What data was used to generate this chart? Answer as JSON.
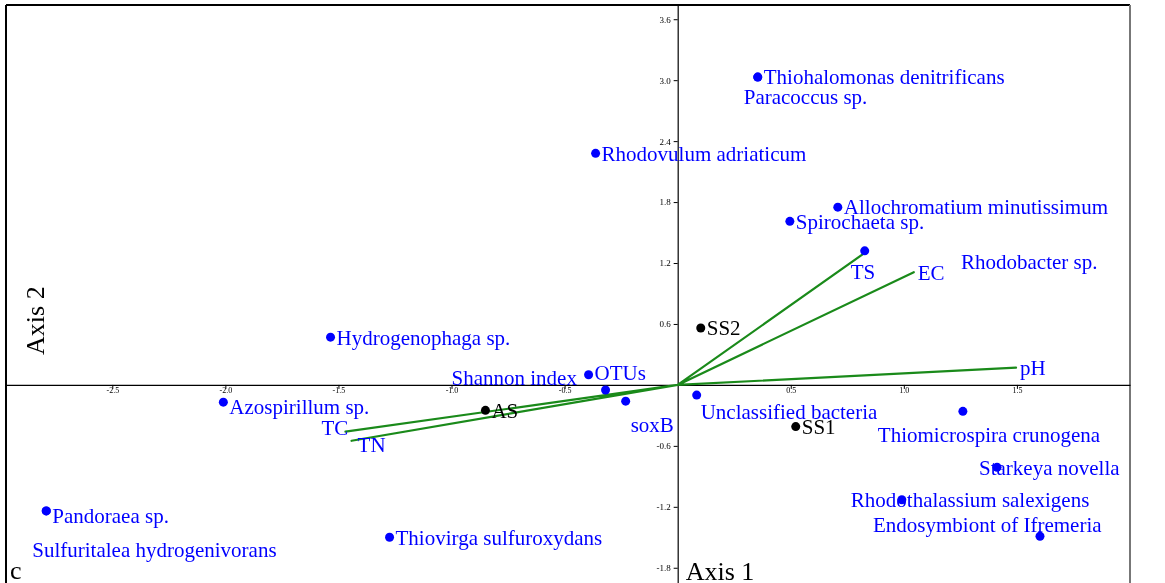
{
  "chart_data": {
    "type": "scatter",
    "xlabel": "Axis 1",
    "ylabel": "Axis 2",
    "xlim": [
      -2.97,
      2.0
    ],
    "ylim": [
      -1.95,
      3.74
    ],
    "xticks": [
      -2.5,
      {
        "value": -2.0,
        "label": "-2.0"
      },
      {
        "value": -1.5,
        "label": "-1.5"
      },
      {
        "value": -1.0,
        "label": "-1.0"
      },
      -0.5,
      0.5,
      {
        "value": 1.0,
        "label": "1.0"
      },
      1.5
    ],
    "yticks": [
      -1.8,
      -1.2,
      -0.6,
      0.6,
      1.2,
      1.8,
      {
        "value": 2.4,
        "label": "2.4"
      },
      {
        "value": 3.0,
        "label": "3.0"
      },
      3.6
    ],
    "grid": false,
    "series": [
      {
        "color": "#0000ff",
        "marker": "circle",
        "x": [
          0.354,
          -0.363,
          0.708,
          0.496,
          0.827,
          -1.535,
          -0.394,
          -0.319,
          -0.23,
          -2.009,
          0.084,
          1.261,
          1.412,
          0.991,
          1.602,
          -2.792,
          -1.274,
          0.354,
          -2.792
        ],
        "values": [
          3.03,
          2.28,
          1.75,
          1.61,
          1.32,
          0.47,
          0.1,
          -0.05,
          -0.16,
          -0.17,
          -0.1,
          -0.26,
          -0.81,
          -1.13,
          -1.49,
          -1.24,
          -1.5,
          3.03,
          -1.24
        ],
        "value_labels": [
          "Thiohalomonas denitrificans",
          "Rhodovulum adriaticum",
          "Allochromatium minutissimum",
          "Spirochaeta sp.",
          null,
          "Hydrogenophaga sp.",
          "OTUs",
          "Shannon index",
          "soxB",
          "Azospirillum sp.",
          "Unclassified bacteria",
          "Thiomicrospira crunogena",
          "Starkeya novella",
          "Rhodothalassium salexigens",
          "Endosymbiont of Ifremeria",
          "Pandoraea sp.",
          "Thiovirga sulfuroxydans",
          "Paracoccus sp.",
          "Sulfuritalea hydrogenivorans"
        ]
      },
      {
        "color": "#000000",
        "marker": "circle",
        "x": [
          0.102,
          -0.85,
          0.522
        ],
        "values": [
          0.56,
          -0.25,
          -0.41
        ],
        "value_labels": [
          "SS2",
          "AS",
          "SS1"
        ]
      },
      {
        "type": "line",
        "color": "#1a8a1a",
        "x": [
          0,
          0.827,
          null,
          0,
          1.044,
          null,
          0,
          1.496,
          null,
          0,
          -1.469,
          null,
          0,
          -1.442
        ],
        "values": [
          0,
          1.3,
          null,
          0,
          1.11,
          null,
          0,
          0.17,
          null,
          0,
          -0.46,
          null,
          0,
          -0.55
        ],
        "value_labels": [
          null,
          "TS",
          null,
          null,
          "EC",
          null,
          null,
          "pH",
          null,
          null,
          "TC",
          null,
          null,
          "TN"
        ]
      }
    ],
    "annotations": [
      "Rhodobacter sp.",
      "c"
    ]
  }
}
